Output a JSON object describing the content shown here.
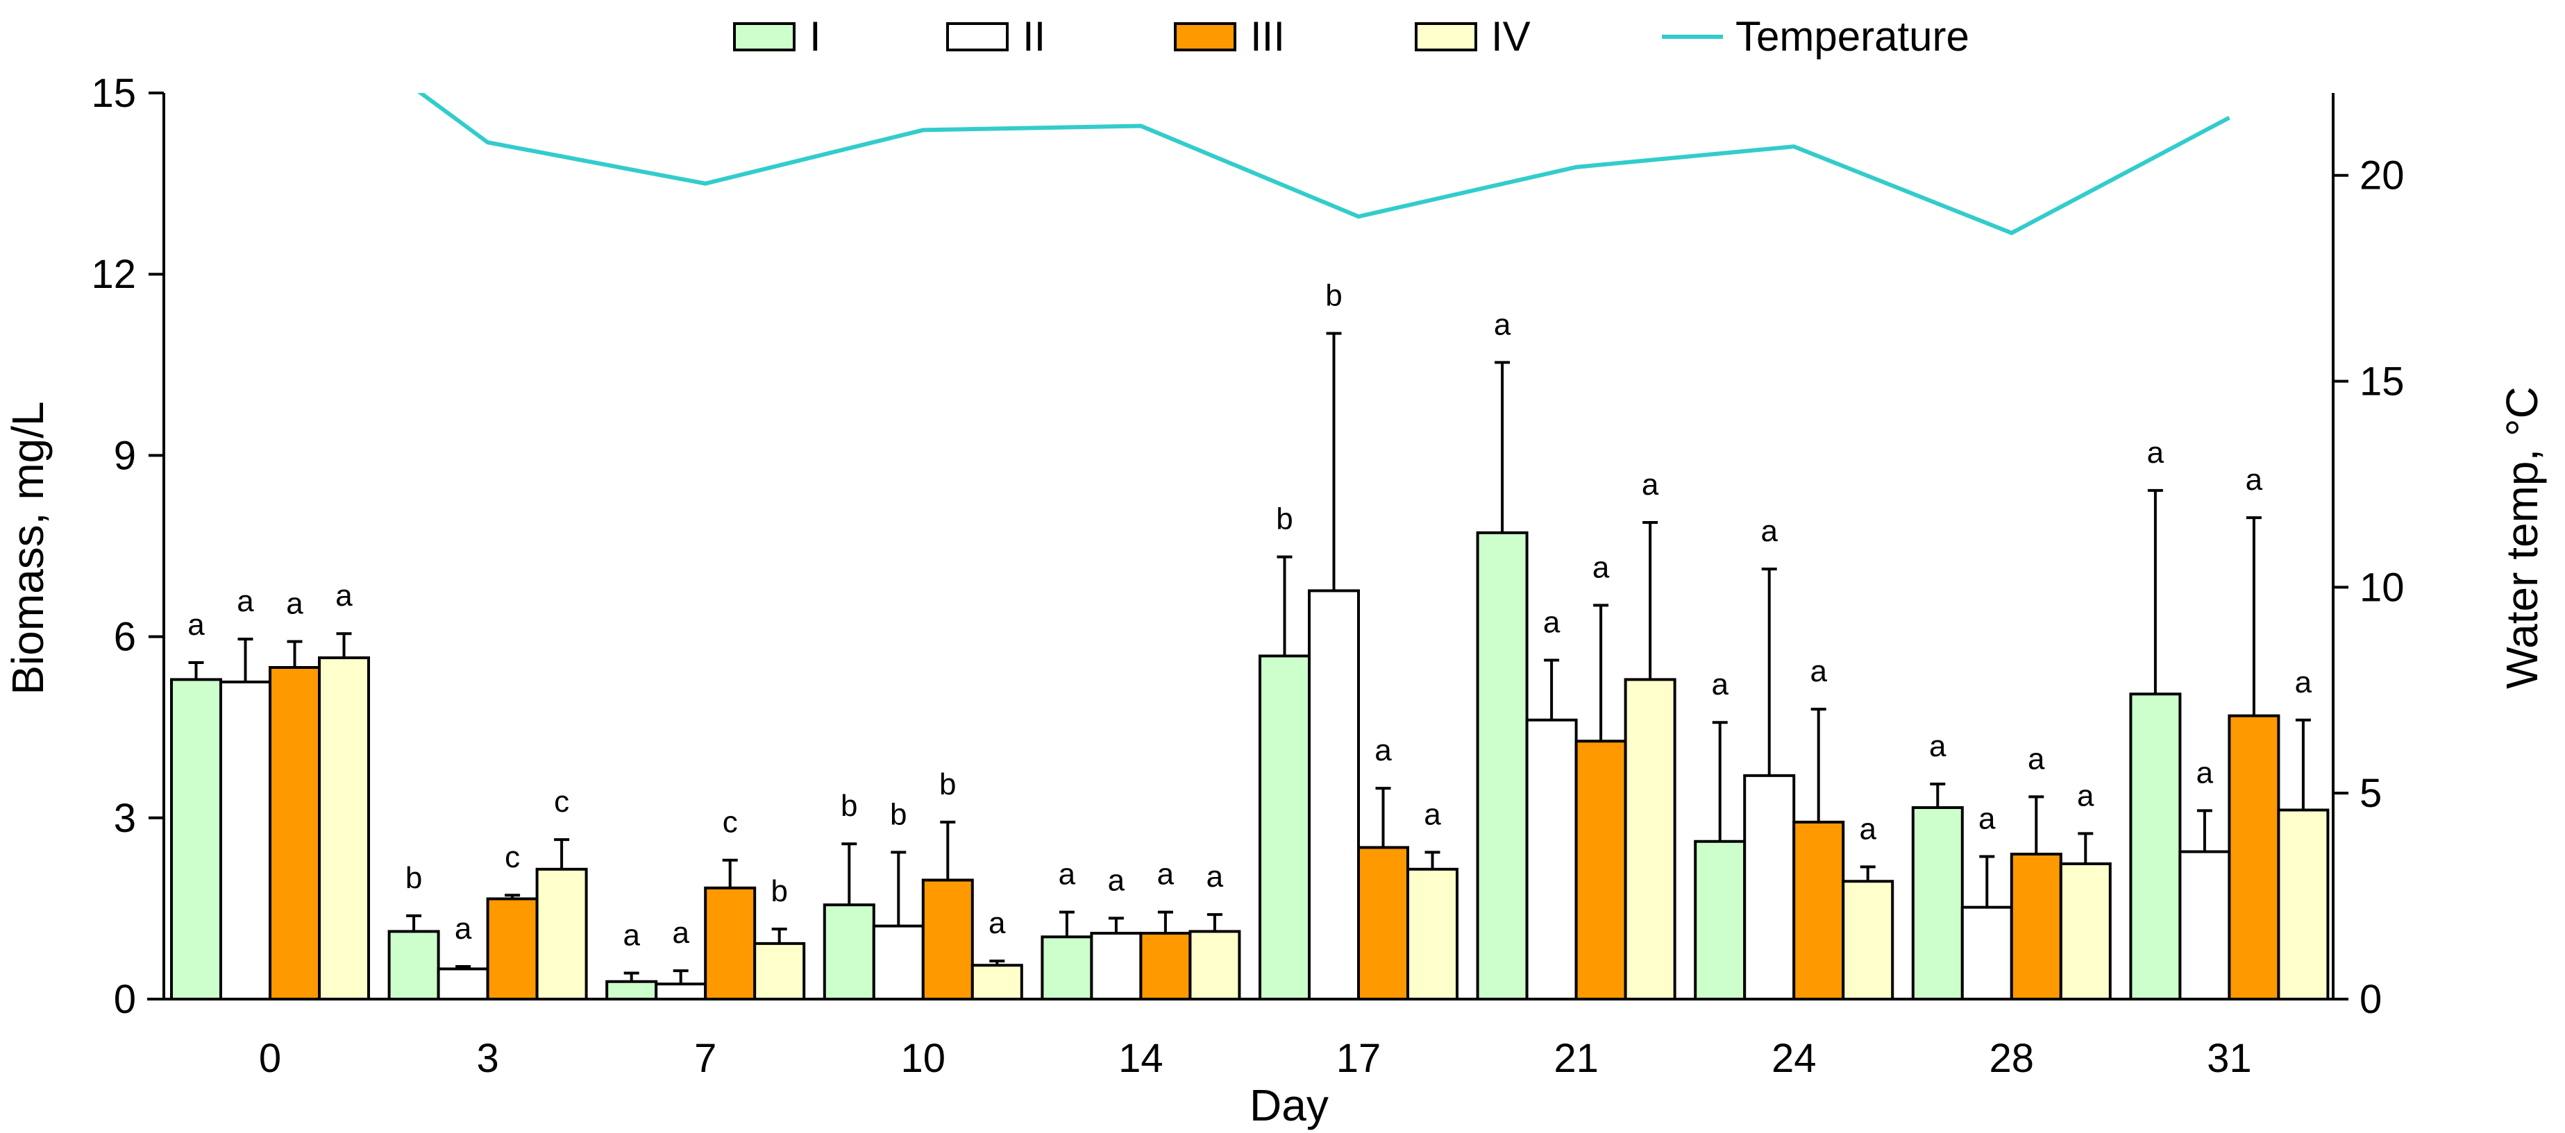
{
  "chart_data": {
    "type": "bar",
    "xlabel": "Day",
    "ylabel": "Biomass, mg/L",
    "y2label": "Water temp, °C",
    "ylim": [
      0,
      15
    ],
    "y2lim": [
      0,
      22
    ],
    "yticks": [
      "0",
      "3",
      "6",
      "9",
      "12",
      "15"
    ],
    "y2ticks": [
      "0",
      "5",
      "10",
      "15",
      "20"
    ],
    "categories": [
      "0",
      "3",
      "7",
      "10",
      "14",
      "17",
      "21",
      "24",
      "28",
      "31"
    ],
    "legend_position": "top-center",
    "series": [
      {
        "name": "I",
        "color": "#ccffcc",
        "values": [
          5.29,
          1.12,
          0.29,
          1.56,
          1.03,
          5.68,
          7.72,
          2.61,
          3.17,
          5.05
        ],
        "error_top": [
          5.57,
          1.38,
          0.43,
          2.57,
          1.44,
          7.32,
          10.54,
          4.58,
          3.56,
          8.42
        ],
        "letters": [
          "a",
          "b",
          "a",
          "b",
          "a",
          "b",
          "a",
          "a",
          "a",
          "a"
        ]
      },
      {
        "name": "II",
        "color": "#ffffff",
        "values": [
          5.25,
          0.5,
          0.25,
          1.21,
          1.09,
          6.76,
          4.62,
          3.7,
          1.52,
          2.44
        ],
        "error_top": [
          5.96,
          0.54,
          0.47,
          2.43,
          1.34,
          11.02,
          5.61,
          7.12,
          2.36,
          3.12
        ],
        "letters": [
          "a",
          "a",
          "a",
          "b",
          "a",
          "b",
          "a",
          "a",
          "a",
          "a"
        ]
      },
      {
        "name": "III",
        "color": "#ff9900",
        "values": [
          5.49,
          1.66,
          1.84,
          1.97,
          1.09,
          2.51,
          4.27,
          2.93,
          2.4,
          4.69
        ],
        "error_top": [
          5.92,
          1.72,
          2.3,
          2.93,
          1.44,
          3.49,
          6.52,
          4.8,
          3.35,
          7.97
        ],
        "letters": [
          "a",
          "c",
          "c",
          "b",
          "a",
          "a",
          "a",
          "a",
          "a",
          "a"
        ]
      },
      {
        "name": "IV",
        "color": "#ffffcc",
        "values": [
          5.65,
          2.15,
          0.92,
          0.56,
          1.12,
          2.15,
          5.29,
          1.95,
          2.24,
          3.13
        ],
        "error_top": [
          6.05,
          2.64,
          1.16,
          0.63,
          1.4,
          2.43,
          7.89,
          2.19,
          2.74,
          4.62
        ],
        "letters": [
          "a",
          "c",
          "b",
          "a",
          "a",
          "a",
          "a",
          "a",
          "a",
          "a"
        ]
      }
    ],
    "line_series": {
      "name": "Temperature",
      "color": "#33cccc",
      "axis": "right",
      "values": [
        24.7,
        20.8,
        19.8,
        21.1,
        21.2,
        19.0,
        20.2,
        20.7,
        18.6,
        21.4
      ]
    }
  }
}
